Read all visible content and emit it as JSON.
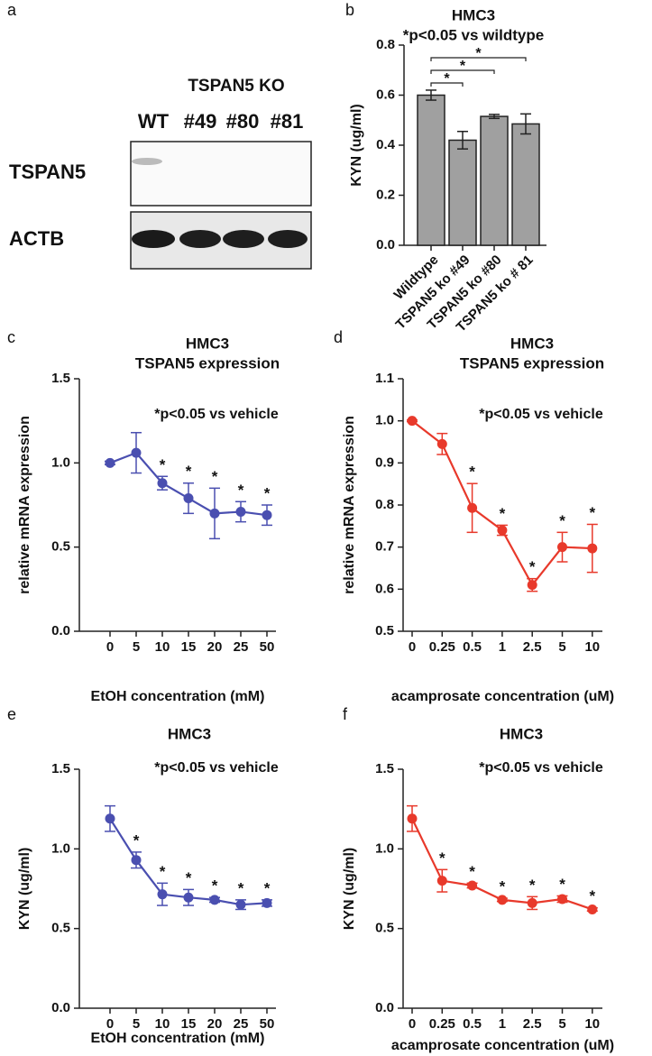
{
  "blot": {
    "panel": "a",
    "group_label": "TSPAN5 KO",
    "lanes": [
      "WT",
      "#49",
      "#80",
      "#81"
    ],
    "rows": [
      "TSPAN5",
      "ACTB"
    ]
  },
  "chart_data": [
    {
      "type": "bar",
      "panel": "b",
      "title": "HMC3",
      "subtitle": "*p<0.05 vs wildtype",
      "y_label": "KYN  (ug/ml)",
      "categories": [
        "Wildtype",
        "TSPAN5 ko #49",
        "TSPAN5 ko #80",
        "TSPAN5 ko # 81"
      ],
      "values": [
        0.6,
        0.42,
        0.515,
        0.485
      ],
      "errors": [
        0.02,
        0.035,
        0.008,
        0.04
      ],
      "color": "#a0a0a0",
      "significance": [
        "*",
        "*",
        "*"
      ],
      "ylim": [
        0,
        0.8
      ],
      "yticks": [
        {
          "value": 0,
          "label": "0.0"
        },
        0.2,
        0.4,
        0.6,
        0.8
      ]
    },
    {
      "type": "line",
      "panel": "c",
      "title": "HMC3",
      "subtitle": "TSPAN5 expression",
      "annotation": "*p<0.05 vs vehicle",
      "y_label": "relative mRNA expression",
      "x_label": "EtOH concentration (mM)",
      "categories": [
        "0",
        "5",
        "10",
        "15",
        "20",
        "25",
        "50"
      ],
      "values": [
        1.0,
        1.06,
        0.88,
        0.79,
        0.7,
        0.71,
        0.69
      ],
      "errors": [
        0.01,
        0.12,
        0.04,
        0.09,
        0.15,
        0.06,
        0.06
      ],
      "significance": [
        null,
        null,
        "*",
        "*",
        "*",
        "*",
        "*"
      ],
      "color": "#4a4fb0",
      "ylim": [
        0,
        1.5
      ],
      "yticks": [
        {
          "value": 0,
          "label": "0.0"
        },
        0.5,
        {
          "value": 1,
          "label": "1.0"
        },
        1.5
      ]
    },
    {
      "type": "line",
      "panel": "d",
      "title": "HMC3",
      "subtitle": "TSPAN5 expression",
      "annotation": "*p<0.05 vs vehicle",
      "y_label": "relative mRNA expression",
      "x_label": "acamprosate concentration (uM)",
      "categories": [
        "0",
        "0.25",
        "0.5",
        "1",
        "2.5",
        "5",
        "10"
      ],
      "values": [
        1.0,
        0.945,
        0.793,
        0.74,
        0.61,
        0.7,
        0.697
      ],
      "errors": [
        0.002,
        0.025,
        0.058,
        0.012,
        0.015,
        0.035,
        0.057
      ],
      "significance": [
        null,
        null,
        "*",
        "*",
        "*",
        "*",
        "*"
      ],
      "color": "#e8392b",
      "ylim": [
        0.5,
        1.1
      ],
      "yticks": [
        0.5,
        0.6,
        0.7,
        0.8,
        0.9,
        {
          "value": 1,
          "label": "1.0"
        },
        1.1
      ]
    },
    {
      "type": "line",
      "panel": "e",
      "title": "HMC3",
      "annotation": "*p<0.05 vs vehicle",
      "y_label": "KYN  (ug/ml)",
      "x_label": "EtOH concentration (mM)",
      "categories": [
        "0",
        "5",
        "10",
        "15",
        "20",
        "25",
        "50"
      ],
      "values": [
        1.19,
        0.93,
        0.715,
        0.695,
        0.68,
        0.65,
        0.66
      ],
      "errors": [
        0.08,
        0.05,
        0.07,
        0.05,
        0.015,
        0.03,
        0.02
      ],
      "significance": [
        null,
        "*",
        "*",
        "*",
        "*",
        "*",
        "*"
      ],
      "color": "#4a4fb0",
      "ylim": [
        0,
        1.5
      ],
      "yticks": [
        {
          "value": 0,
          "label": "0.0"
        },
        0.5,
        {
          "value": 1,
          "label": "1.0"
        },
        1.5
      ]
    },
    {
      "type": "line",
      "panel": "f",
      "title": "HMC3",
      "annotation": "*p<0.05 vs vehicle",
      "y_label": "KYN  (ug/ml)",
      "x_label": "acamprosate concentration (uM)",
      "categories": [
        "0",
        "0.25",
        "0.5",
        "1",
        "2.5",
        "5",
        "10"
      ],
      "values": [
        1.19,
        0.8,
        0.77,
        0.68,
        0.66,
        0.685,
        0.62
      ],
      "errors": [
        0.08,
        0.07,
        0.015,
        0.01,
        0.04,
        0.02,
        0.01
      ],
      "significance": [
        null,
        "*",
        "*",
        "*",
        "*",
        "*",
        "*"
      ],
      "color": "#e8392b",
      "ylim": [
        0,
        1.5
      ],
      "yticks": [
        {
          "value": 0,
          "label": "0.0"
        },
        0.5,
        {
          "value": 1,
          "label": "1.0"
        },
        1.5
      ]
    }
  ]
}
